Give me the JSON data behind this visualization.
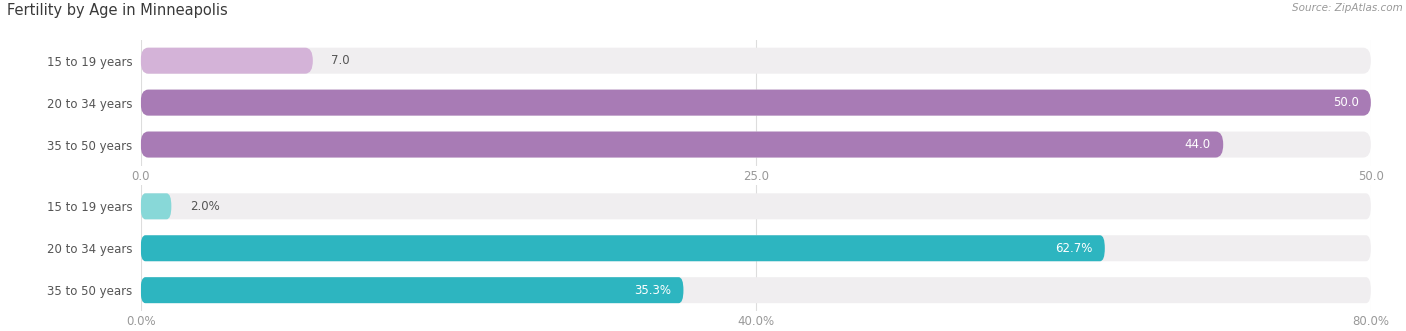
{
  "title": "Fertility by Age in Minneapolis",
  "source": "Source: ZipAtlas.com",
  "top_chart": {
    "categories": [
      "15 to 19 years",
      "20 to 34 years",
      "35 to 50 years"
    ],
    "values": [
      7.0,
      50.0,
      44.0
    ],
    "xlim": [
      0,
      50
    ],
    "xticks": [
      0.0,
      25.0,
      50.0
    ],
    "xtick_labels": [
      "0.0",
      "25.0",
      "50.0"
    ],
    "bar_color_light": "#d4b3d8",
    "bar_color_dark": "#a87bb5",
    "bar_bg_color": "#f0eef0",
    "value_label_inside": [
      false,
      true,
      true
    ],
    "value_labels": [
      "7.0",
      "50.0",
      "44.0"
    ]
  },
  "bottom_chart": {
    "categories": [
      "15 to 19 years",
      "20 to 34 years",
      "35 to 50 years"
    ],
    "values": [
      2.0,
      62.7,
      35.3
    ],
    "xlim": [
      0,
      80
    ],
    "xticks": [
      0.0,
      40.0,
      80.0
    ],
    "xtick_labels": [
      "0.0%",
      "40.0%",
      "80.0%"
    ],
    "bar_color_light": "#88d8d8",
    "bar_color_dark": "#2db5c0",
    "bar_bg_color": "#f0eef0",
    "value_label_inside": [
      false,
      true,
      true
    ],
    "value_labels": [
      "2.0%",
      "62.7%",
      "35.3%"
    ]
  },
  "bg_color": "#ffffff",
  "title_color": "#3a3a3a",
  "tick_color": "#999999",
  "label_text_color": "#555555",
  "bar_height": 0.62,
  "grid_color": "#dddddd"
}
